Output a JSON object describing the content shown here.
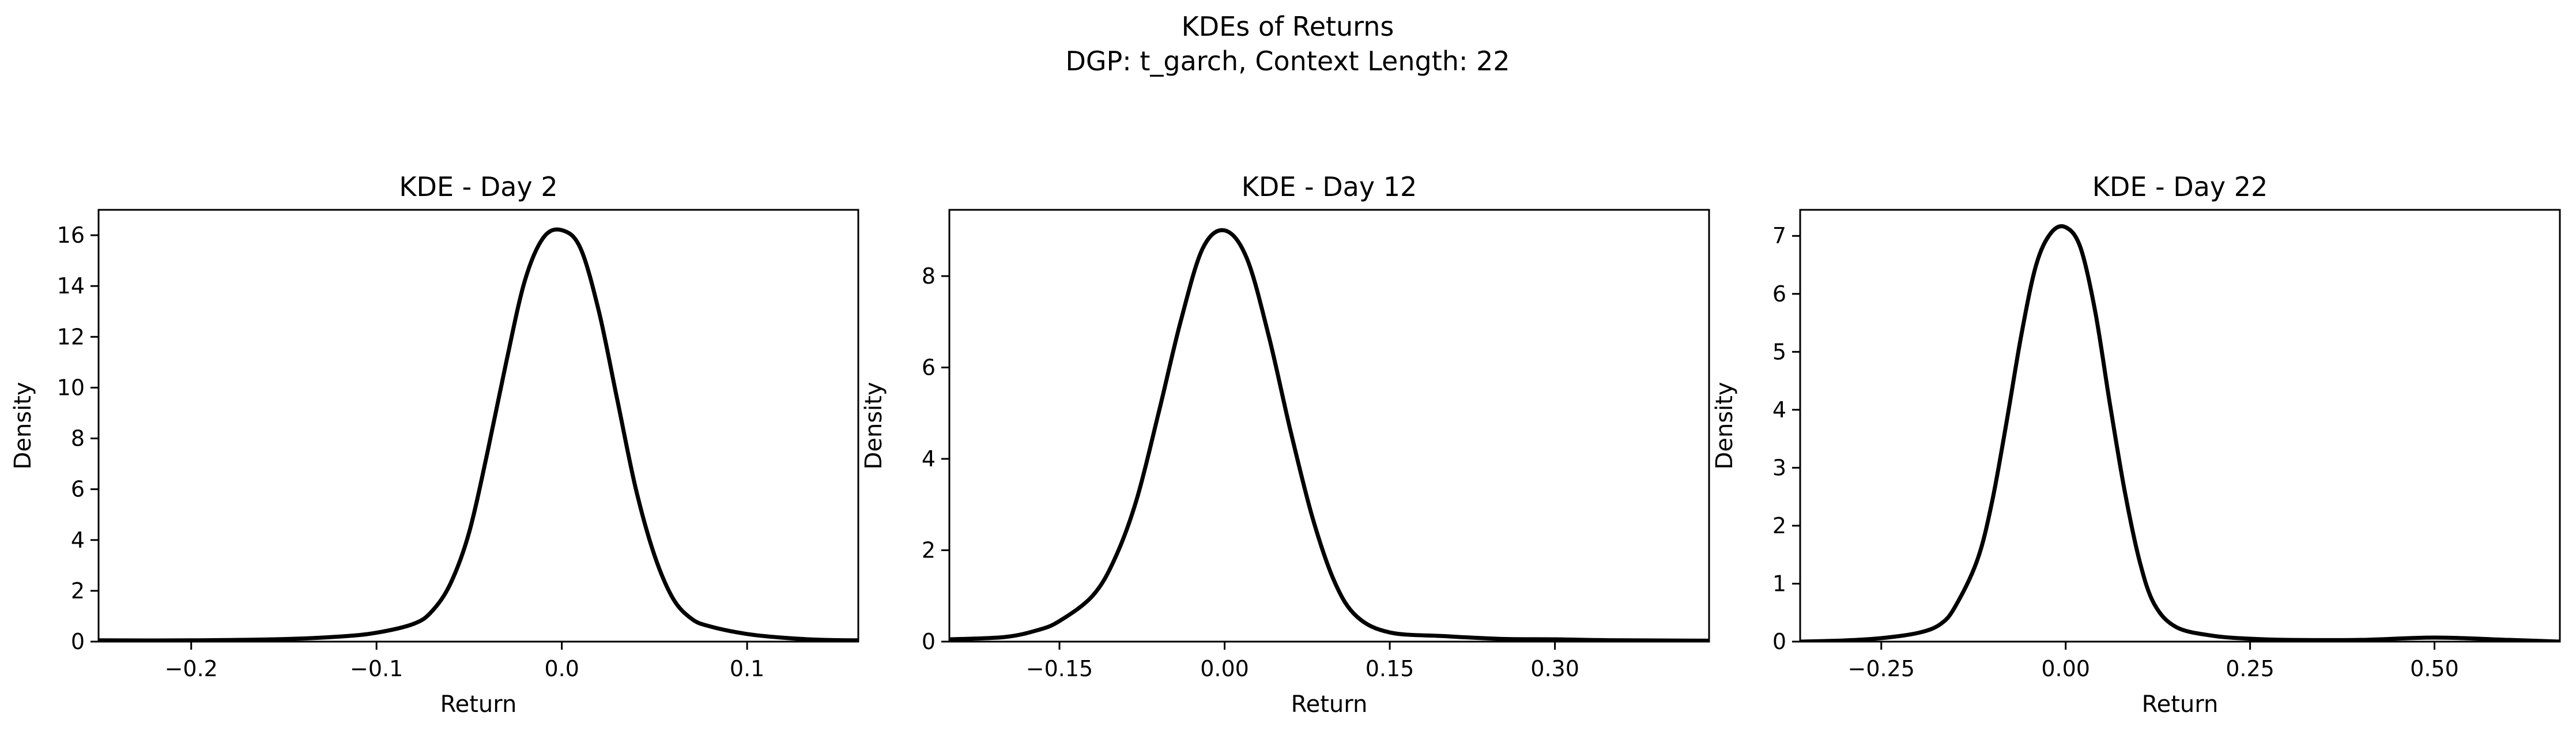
{
  "figure": {
    "title_line1": "KDEs of Returns",
    "title_line2": "DGP: t_garch, Context Length: 22"
  },
  "colors": {
    "line": "#000000",
    "axes": "#000000",
    "background": "#ffffff"
  },
  "chart_data": [
    {
      "type": "line",
      "title": "KDE - Day 2",
      "xlabel": "Return",
      "ylabel": "Density",
      "xlim": [
        -0.25,
        0.16
      ],
      "ylim": [
        0,
        17
      ],
      "xticks": [
        -0.2,
        -0.1,
        0.0,
        0.1
      ],
      "xtick_labels": [
        "−0.2",
        "−0.1",
        "0.0",
        "0.1"
      ],
      "yticks": [
        0,
        2,
        4,
        6,
        8,
        10,
        12,
        14,
        16
      ],
      "ytick_labels": [
        "0",
        "2",
        "4",
        "6",
        "8",
        "10",
        "12",
        "14",
        "16"
      ],
      "grid": false,
      "series": [
        {
          "x": [
            -0.25,
            -0.2,
            -0.15,
            -0.12,
            -0.1,
            -0.08,
            -0.07,
            -0.06,
            -0.05,
            -0.04,
            -0.03,
            -0.02,
            -0.01,
            0.0,
            0.01,
            0.02,
            0.03,
            0.04,
            0.05,
            0.06,
            0.07,
            0.08,
            0.1,
            0.12,
            0.14,
            0.16
          ],
          "y": [
            0.05,
            0.05,
            0.1,
            0.2,
            0.35,
            0.7,
            1.2,
            2.3,
            4.3,
            7.5,
            11.0,
            14.2,
            15.9,
            16.2,
            15.5,
            13.0,
            9.5,
            6.0,
            3.4,
            1.7,
            0.9,
            0.6,
            0.3,
            0.15,
            0.07,
            0.05
          ]
        }
      ]
    },
    {
      "type": "line",
      "title": "KDE - Day 12",
      "xlabel": "Return",
      "ylabel": "Density",
      "xlim": [
        -0.25,
        0.44
      ],
      "ylim": [
        0,
        9.45
      ],
      "xticks": [
        -0.15,
        0.0,
        0.15,
        0.3
      ],
      "xtick_labels": [
        "−0.15",
        "0.00",
        "0.15",
        "0.30"
      ],
      "yticks": [
        0,
        2,
        4,
        6,
        8
      ],
      "ytick_labels": [
        "0",
        "2",
        "4",
        "6",
        "8"
      ],
      "grid": false,
      "series": [
        {
          "x": [
            -0.25,
            -0.2,
            -0.17,
            -0.15,
            -0.12,
            -0.1,
            -0.08,
            -0.06,
            -0.04,
            -0.02,
            0.0,
            0.02,
            0.04,
            0.06,
            0.08,
            0.1,
            0.12,
            0.15,
            0.2,
            0.25,
            0.3,
            0.35,
            0.44
          ],
          "y": [
            0.05,
            0.1,
            0.25,
            0.45,
            1.0,
            1.8,
            3.1,
            5.0,
            7.0,
            8.6,
            9.0,
            8.4,
            6.7,
            4.6,
            2.7,
            1.3,
            0.55,
            0.2,
            0.12,
            0.06,
            0.05,
            0.03,
            0.02
          ]
        }
      ]
    },
    {
      "type": "line",
      "title": "KDE - Day 22",
      "xlabel": "Return",
      "ylabel": "Density",
      "xlim": [
        -0.36,
        0.67
      ],
      "ylim": [
        0,
        7.45
      ],
      "xticks": [
        -0.25,
        0.0,
        0.25,
        0.5
      ],
      "xtick_labels": [
        "−0.25",
        "0.00",
        "0.25",
        "0.50"
      ],
      "yticks": [
        0,
        1,
        2,
        3,
        4,
        5,
        6,
        7
      ],
      "ytick_labels": [
        "0",
        "1",
        "2",
        "3",
        "4",
        "5",
        "6",
        "7"
      ],
      "grid": false,
      "series": [
        {
          "x": [
            -0.36,
            -0.3,
            -0.25,
            -0.2,
            -0.17,
            -0.15,
            -0.12,
            -0.1,
            -0.08,
            -0.06,
            -0.04,
            -0.02,
            0.0,
            0.02,
            0.04,
            0.06,
            0.08,
            0.1,
            0.12,
            0.15,
            0.2,
            0.25,
            0.3,
            0.4,
            0.5,
            0.6,
            0.67
          ],
          "y": [
            0.0,
            0.02,
            0.06,
            0.15,
            0.3,
            0.6,
            1.4,
            2.4,
            3.8,
            5.3,
            6.5,
            7.05,
            7.15,
            6.8,
            5.7,
            4.1,
            2.6,
            1.4,
            0.65,
            0.25,
            0.1,
            0.05,
            0.03,
            0.03,
            0.07,
            0.03,
            0.0
          ]
        }
      ]
    }
  ]
}
